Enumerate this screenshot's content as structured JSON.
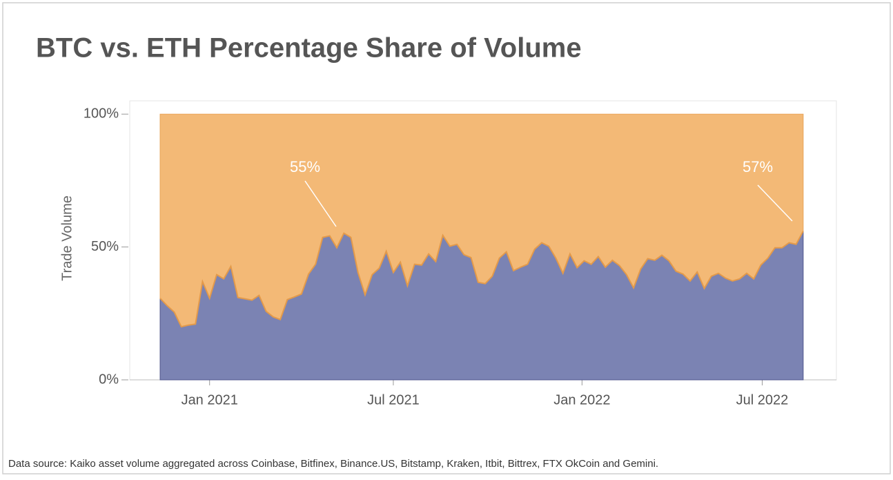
{
  "chart_data": {
    "type": "stacked_area",
    "title": "BTC vs. ETH Percentage Share of Volume",
    "y_label": "Trade Volume",
    "footnote": "Data source: Kaiko asset volume aggregated across Coinbase, Bitfinex, Binance.US, Bitstamp, Kraken, Itbit, Bittrex, FTX OkCoin and Gemini.",
    "annotations": [
      "55%",
      "57%"
    ],
    "categories": [
      null,
      null,
      null,
      null,
      null,
      null,
      null,
      null,
      null,
      null,
      null,
      null,
      null,
      null,
      null,
      null,
      null,
      null,
      null,
      null,
      null,
      null,
      null,
      null,
      null,
      null,
      null,
      null,
      null,
      null,
      null,
      null,
      null,
      null,
      null,
      null,
      null,
      null,
      null,
      null,
      null,
      null,
      null,
      null,
      null,
      null,
      null,
      null,
      null,
      null,
      null,
      null,
      null,
      null,
      null,
      null,
      null,
      null,
      null,
      null,
      null,
      null,
      null,
      null,
      null,
      null,
      null,
      null,
      null,
      null,
      null,
      null,
      null,
      null,
      null,
      null,
      null,
      null,
      null,
      null,
      null,
      null,
      null,
      null,
      null,
      null,
      null,
      null,
      null,
      null,
      null,
      null
    ],
    "xlim": [
      -4.3,
      95.7
    ],
    "xticks": [
      {
        "value": 7.0,
        "label": "Jan 2021"
      },
      {
        "value": 33.0,
        "label": "Jul 2021"
      },
      {
        "value": 59.7,
        "label": "Jan 2022"
      },
      {
        "value": 85.2,
        "label": "Jul 2022"
      }
    ],
    "ylim": [
      0,
      105
    ],
    "yticks": [
      {
        "value": 0,
        "label": "0%"
      },
      {
        "value": 50,
        "label": "50%"
      },
      {
        "value": 100,
        "label": "100%"
      }
    ],
    "series": [
      {
        "color": "#7b83b3",
        "values": [
          30.7,
          27.9,
          25.5,
          20,
          20.6,
          21,
          37,
          30.7,
          39.6,
          38,
          42.7,
          31,
          30.5,
          30,
          31.8,
          25.8,
          23.7,
          22.7,
          30.2,
          31.2,
          32.3,
          39.8,
          43.5,
          53.6,
          54.2,
          49.7,
          55.2,
          53.6,
          40.4,
          32,
          39.6,
          42,
          48.4,
          40.4,
          44.3,
          35.4,
          43.5,
          43.2,
          47.4,
          44.5,
          54.4,
          50.3,
          51,
          47.1,
          46,
          36.7,
          36.2,
          39,
          45.8,
          48.2,
          41.1,
          42.4,
          43.5,
          49.2,
          51.6,
          50.3,
          45.8,
          40.1,
          47.4,
          42.2,
          44.8,
          43.5,
          46.4,
          42.4,
          45,
          43,
          39.6,
          34.6,
          41.7,
          45.6,
          45,
          46.9,
          44.8,
          40.9,
          39.8,
          37.2,
          40.6,
          34.4,
          39,
          40.1,
          38.3,
          37.2,
          38,
          40.1,
          38,
          43.2,
          45.8,
          49.7,
          49.7,
          51.6,
          51,
          56
        ]
      },
      {
        "color": "#f3b976",
        "values": [
          69.3,
          72.1,
          74.5,
          80,
          79.4,
          79,
          63,
          69.3,
          60.4,
          62,
          57.3,
          69,
          69.5,
          70,
          68.2,
          74.2,
          76.3,
          77.3,
          69.8,
          68.8,
          67.7,
          60.2,
          56.5,
          46.4,
          45.8,
          50.3,
          44.8,
          46.4,
          59.6,
          68,
          60.4,
          58,
          51.6,
          59.6,
          55.7,
          64.6,
          56.5,
          56.8,
          52.6,
          55.5,
          45.6,
          49.7,
          49,
          52.9,
          54,
          63.3,
          63.8,
          61,
          54.2,
          51.8,
          58.9,
          57.6,
          56.5,
          50.8,
          48.4,
          49.7,
          54.2,
          59.9,
          52.6,
          57.8,
          55.2,
          56.5,
          53.6,
          57.6,
          55,
          57,
          60.4,
          65.4,
          58.3,
          54.4,
          55,
          53.1,
          55.2,
          59.1,
          60.2,
          62.8,
          59.4,
          65.6,
          61,
          59.9,
          61.7,
          62.8,
          62,
          59.9,
          62,
          56.8,
          54.2,
          50.3,
          50.3,
          48.4,
          49,
          44
        ]
      }
    ]
  }
}
